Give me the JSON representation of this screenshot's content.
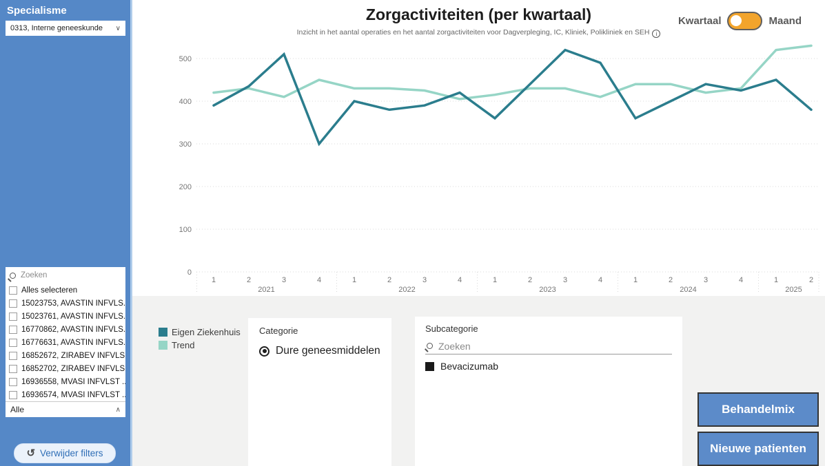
{
  "sidebar": {
    "title": "Specialisme",
    "dropdown_value": "0313, Interne geneeskunde",
    "search_placeholder": "Zoeken",
    "items": [
      "Alles selecteren",
      "15023753, AVASTIN INFVLS...",
      "15023761, AVASTIN INFVLS...",
      "16770862, AVASTIN INFVLS...",
      "16776631, AVASTIN INFVLS...",
      "16852672, ZIRABEV INFVLS...",
      "16852702, ZIRABEV INFVLS...",
      "16936558, MVASI INFVLST ...",
      "16936574, MVASI INFVLST ..."
    ],
    "footer_label": "Alle",
    "clear_filters_label": "Verwijder filters"
  },
  "header": {
    "title": "Zorgactiviteiten (per kwartaal)",
    "subtitle": "Inzicht in het aantal operaties en het aantal zorgactiviteiten voor Dagverpleging, IC, Kliniek, Polikliniek en SEH",
    "info_glyph": "i",
    "toggle": {
      "left_label": "Kwartaal",
      "right_label": "Maand",
      "active": "Kwartaal",
      "color": "#F2A42C"
    }
  },
  "icons": {
    "dropdown_chevron": "∨",
    "collapse_chevron": "∧",
    "undo": "↺"
  },
  "chart_data": {
    "type": "line",
    "title": "Zorgactiviteiten (per kwartaal)",
    "xlabel": "",
    "ylabel": "",
    "ylim": [
      0,
      500
    ],
    "yticks": [
      0,
      100,
      200,
      300,
      400,
      500
    ],
    "grid": "dotted-horizontal",
    "legend_position": "bottom-left",
    "x_years": [
      {
        "year": "2021",
        "quarters": [
          "1",
          "2",
          "3",
          "4"
        ]
      },
      {
        "year": "2022",
        "quarters": [
          "1",
          "2",
          "3",
          "4"
        ]
      },
      {
        "year": "2023",
        "quarters": [
          "1",
          "2",
          "3",
          "4"
        ]
      },
      {
        "year": "2024",
        "quarters": [
          "1",
          "2",
          "3",
          "4"
        ]
      },
      {
        "year": "2025",
        "quarters": [
          "1",
          "2"
        ]
      }
    ],
    "series": [
      {
        "name": "Eigen Ziekenhuis",
        "color": "#2B7D8D",
        "values": [
          390,
          435,
          510,
          300,
          400,
          380,
          390,
          420,
          360,
          440,
          520,
          490,
          360,
          400,
          440,
          425,
          450,
          380
        ]
      },
      {
        "name": "Trend",
        "color": "#96D5C6",
        "values": [
          420,
          430,
          410,
          450,
          430,
          430,
          425,
          405,
          415,
          430,
          430,
          410,
          440,
          440,
          420,
          430,
          520,
          530
        ]
      }
    ],
    "axis_color": "#757575",
    "grid_color": "#D9D9D9"
  },
  "panels": {
    "categorie": {
      "title": "Categorie",
      "options": [
        {
          "label": "Dure geneesmiddelen",
          "selected": true
        }
      ]
    },
    "subcategorie": {
      "title": "Subcategorie",
      "search_placeholder": "Zoeken",
      "items": [
        {
          "label": "Bevacizumab",
          "selected": true
        }
      ]
    }
  },
  "buttons": [
    {
      "label": "Behandelmix"
    },
    {
      "label": "Nieuwe patienten"
    }
  ]
}
